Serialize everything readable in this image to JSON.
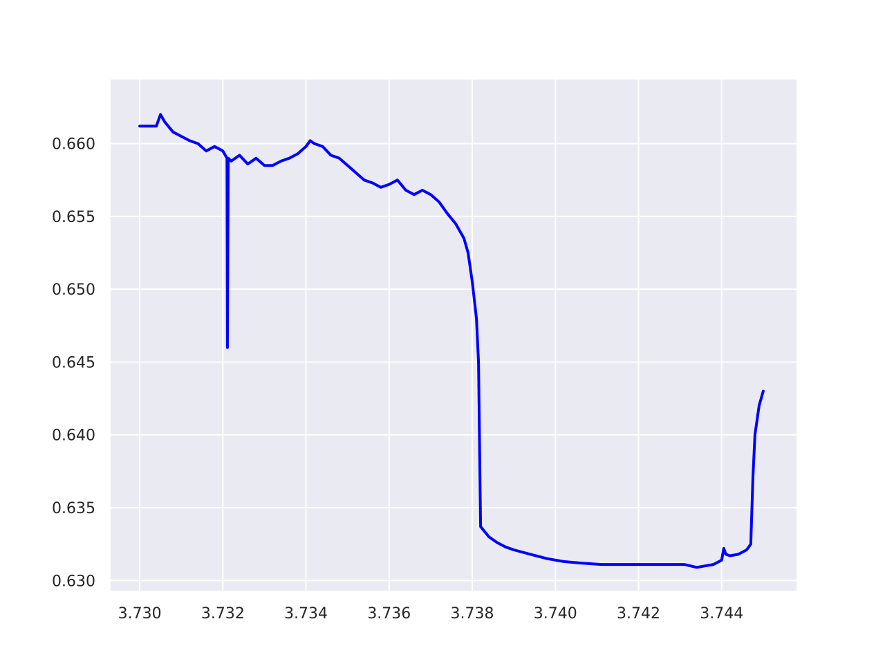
{
  "chart_data": {
    "type": "line",
    "title": "",
    "xlabel": "",
    "ylabel": "",
    "xlim": [
      3.7293,
      3.7458
    ],
    "ylim": [
      0.6293,
      0.6644
    ],
    "grid": true,
    "x_ticks": [
      3.73,
      3.732,
      3.734,
      3.736,
      3.738,
      3.74,
      3.742,
      3.744
    ],
    "x_tick_labels": [
      "3.730",
      "3.732",
      "3.734",
      "3.736",
      "3.738",
      "3.740",
      "3.742",
      "3.744"
    ],
    "y_ticks": [
      0.63,
      0.635,
      0.64,
      0.645,
      0.65,
      0.655,
      0.66
    ],
    "y_tick_labels": [
      "0.630",
      "0.635",
      "0.640",
      "0.645",
      "0.650",
      "0.655",
      "0.660"
    ],
    "colors": {
      "line": "#0000ff",
      "plot_bg": "#eaeaf2",
      "grid": "#ffffff",
      "text": "#262626"
    },
    "series": [
      {
        "x": [
          3.73,
          3.7302,
          3.7304,
          3.7305,
          3.7306,
          3.7308,
          3.731,
          3.7312,
          3.7314,
          3.7316,
          3.7318,
          3.732,
          3.7321,
          3.73211,
          3.73213,
          3.7322,
          3.7324,
          3.7326,
          3.7328,
          3.733,
          3.7332,
          3.7334,
          3.7336,
          3.7338,
          3.734,
          3.7341,
          3.7342,
          3.7344,
          3.7346,
          3.7348,
          3.735,
          3.7352,
          3.7354,
          3.7356,
          3.7358,
          3.736,
          3.7362,
          3.7364,
          3.7366,
          3.7368,
          3.737,
          3.7372,
          3.7374,
          3.7376,
          3.7378,
          3.7379,
          3.738,
          3.7381,
          3.73815,
          3.7382,
          3.7384,
          3.7386,
          3.7388,
          3.739,
          3.7394,
          3.7398,
          3.7402,
          3.7406,
          3.7411,
          3.7418,
          3.7425,
          3.7431,
          3.7434,
          3.7436,
          3.7438,
          3.744,
          3.74405,
          3.7441,
          3.7442,
          3.7444,
          3.7446,
          3.7447,
          3.74475,
          3.7448,
          3.7449,
          3.745
        ],
        "y": [
          0.6612,
          0.6612,
          0.6612,
          0.662,
          0.6615,
          0.6608,
          0.6605,
          0.6602,
          0.66,
          0.6595,
          0.6598,
          0.6595,
          0.659,
          0.646,
          0.659,
          0.6588,
          0.6592,
          0.6586,
          0.659,
          0.6585,
          0.6585,
          0.6588,
          0.659,
          0.6593,
          0.6598,
          0.6602,
          0.66,
          0.6598,
          0.6592,
          0.659,
          0.6585,
          0.658,
          0.6575,
          0.6573,
          0.657,
          0.6572,
          0.6575,
          0.6568,
          0.6565,
          0.6568,
          0.6565,
          0.656,
          0.6552,
          0.6545,
          0.6535,
          0.6525,
          0.6505,
          0.648,
          0.645,
          0.6337,
          0.633,
          0.6326,
          0.6323,
          0.6321,
          0.6318,
          0.6315,
          0.6313,
          0.6312,
          0.6311,
          0.6311,
          0.6311,
          0.6311,
          0.6309,
          0.631,
          0.6311,
          0.6314,
          0.6322,
          0.6318,
          0.6317,
          0.6318,
          0.6321,
          0.6325,
          0.637,
          0.64,
          0.642,
          0.643
        ]
      }
    ]
  }
}
